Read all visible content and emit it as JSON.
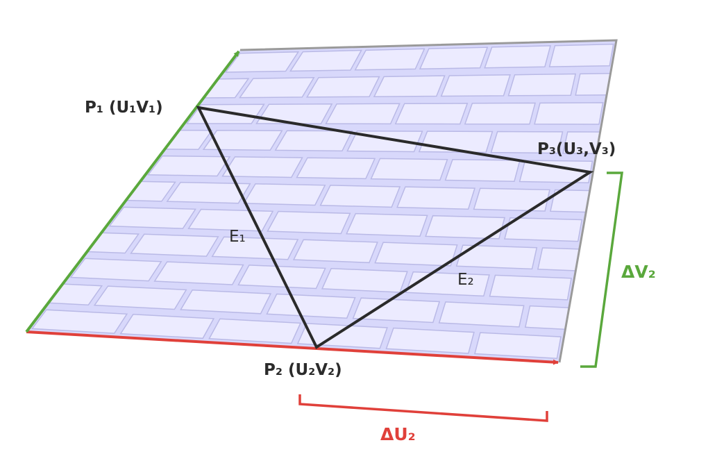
{
  "labels": {
    "p1": "P₁ (U₁V₁)",
    "p2": "P₂ (U₂V₂)",
    "p3": "P₃(U₃,V₃)",
    "e1": "E₁",
    "e2": "E₂",
    "delta_u": "ΔU₂",
    "delta_v": "ΔV₂"
  },
  "colors": {
    "surface": "#d8d8fb",
    "brick_mortar": "#b9b9e6",
    "brick_highlight": "#ecebff",
    "triangle": "#2a2a2a",
    "u_axis": "#e0403a",
    "v_axis": "#5aa83c",
    "border": "#9a9a9a"
  }
}
